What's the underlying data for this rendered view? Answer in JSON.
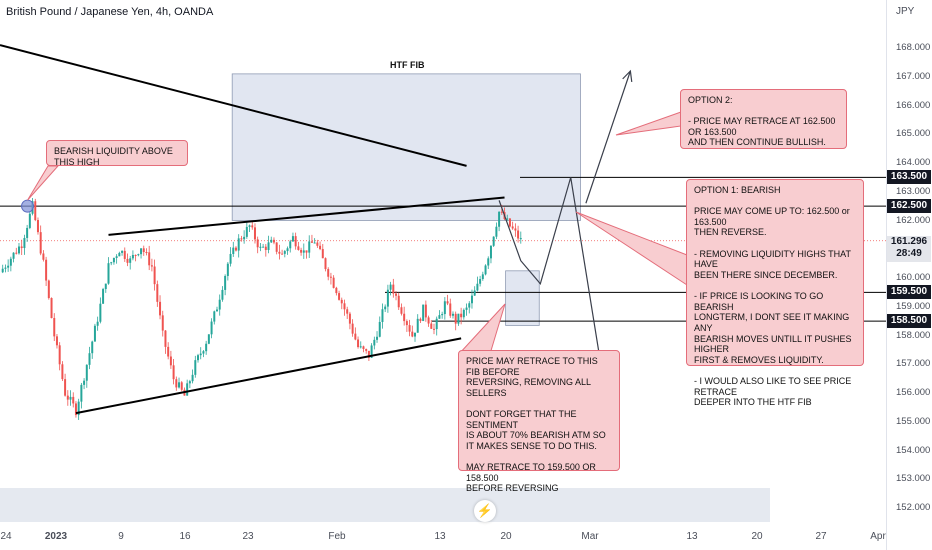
{
  "title": "British Pound / Japanese Yen, 4h, OANDA",
  "unit": "JPY",
  "htf_label": "HTF FIB",
  "last_price": "161.296",
  "countdown": "28:49",
  "tv_logo": "⚡",
  "notes": {
    "liquidity": "BEARISH LIQUIDITY ABOVE THIS HIGH",
    "option2": "OPTION 2:\n\n- PRICE MAY RETRACE AT 162.500 OR 163.500\n  AND THEN CONTINUE BULLISH.",
    "option1": "OPTION 1: BEARISH\n\nPRICE MAY COME UP TO: 162.500 or 163.500\nTHEN REVERSE.\n\n- REMOVING LIQUIDITY HIGHS THAT HAVE\n  BEEN THERE SINCE DECEMBER.\n\n- IF PRICE IS LOOKING TO GO BEARISH\n  LONGTERM, I DONT SEE IT MAKING ANY\n  BEARISH MOVES UNTILL IT PUSHES HIGHER\n  FIRST & REMOVES LIQUIDITY.\n\n- I WOULD ALSO LIKE TO SEE PRICE RETRACE\n  DEEPER INTO THE HTF FIB",
    "retrace": "PRICE MAY RETRACE TO THIS FIB BEFORE\nREVERSING, REMOVING ALL SELLERS\n\nDONT FORGET THAT THE SENTIMENT\nIS ABOUT 70% BEARISH ATM SO\nIT MAKES SENSE TO DO THIS.\n\nMAY RETRACE TO 159.500 OR 158.500\nBEFORE REVERSING"
  },
  "chart_data": {
    "type": "candlestick",
    "symbol": "British Pound / Japanese Yen",
    "timeframe": "4h",
    "source": "OANDA",
    "y_unit": "JPY",
    "ylim": [
      151.7,
      169.0
    ],
    "y_ticks": [
      "152.000",
      "153.000",
      "154.000",
      "155.000",
      "156.000",
      "157.000",
      "158.000",
      "159.000",
      "160.000",
      "161.000",
      "162.000",
      "163.000",
      "164.000",
      "165.000",
      "166.000",
      "167.000",
      "168.000"
    ],
    "x_ticks": [
      "24",
      "2023",
      "9",
      "16",
      "23",
      "Feb",
      "13",
      "20",
      "Mar",
      "13",
      "20",
      "27",
      "Apr"
    ],
    "levels": [
      {
        "label": "163.500",
        "price": 163.5
      },
      {
        "label": "162.500",
        "price": 162.5
      },
      {
        "label": "159.500",
        "price": 159.5
      },
      {
        "label": "158.500",
        "price": 158.5
      }
    ],
    "last_price": 161.296,
    "price_path": [
      [
        0,
        160.2
      ],
      [
        1,
        160.7
      ],
      [
        2,
        161.2
      ],
      [
        3,
        162.5
      ],
      [
        4,
        160.5
      ],
      [
        5,
        158.0
      ],
      [
        6,
        156.0
      ],
      [
        7,
        155.4
      ],
      [
        8,
        157.0
      ],
      [
        9,
        158.6
      ],
      [
        10,
        160.4
      ],
      [
        11,
        161.0
      ],
      [
        12,
        160.6
      ],
      [
        13,
        161.1
      ],
      [
        14,
        160.4
      ],
      [
        15,
        158.0
      ],
      [
        16,
        156.5
      ],
      [
        17,
        155.9
      ],
      [
        18,
        157.0
      ],
      [
        19,
        157.8
      ],
      [
        20,
        159.0
      ],
      [
        21,
        160.5
      ],
      [
        22,
        161.3
      ],
      [
        23,
        161.8
      ],
      [
        24,
        161.0
      ],
      [
        25,
        161.2
      ],
      [
        26,
        160.8
      ],
      [
        27,
        161.4
      ],
      [
        28,
        160.9
      ],
      [
        29,
        161.3
      ],
      [
        30,
        160.4
      ],
      [
        31,
        159.6
      ],
      [
        32,
        158.7
      ],
      [
        33,
        157.6
      ],
      [
        34,
        157.3
      ],
      [
        35,
        158.4
      ],
      [
        36,
        159.8
      ],
      [
        37,
        158.9
      ],
      [
        38,
        158.0
      ],
      [
        39,
        158.9
      ],
      [
        40,
        158.2
      ],
      [
        41,
        159.1
      ],
      [
        42,
        158.5
      ],
      [
        43,
        158.9
      ],
      [
        44,
        159.7
      ],
      [
        45,
        160.8
      ],
      [
        46,
        162.3
      ],
      [
        47,
        161.8
      ],
      [
        48,
        161.3
      ]
    ],
    "series": [
      {
        "name": "Upper trend line",
        "x": [
          0,
          43
        ],
        "y": [
          168.1,
          163.9
        ]
      },
      {
        "name": "Channel top",
        "x": [
          10,
          46.5
        ],
        "y": [
          161.5,
          162.8
        ]
      },
      {
        "name": "Channel bottom",
        "x": [
          7,
          42.5
        ],
        "y": [
          155.3,
          157.9
        ]
      },
      {
        "name": "Option 1 path",
        "x": [
          46,
          48,
          49.8,
          52.6,
          56.1
        ],
        "y": [
          162.7,
          160.6,
          159.8,
          163.5,
          155.3
        ]
      },
      {
        "name": "Option 2 path",
        "x": [
          54,
          58.1
        ],
        "y": [
          162.6,
          167.2
        ]
      }
    ],
    "zones": [
      {
        "name": "HTF FIB",
        "x0": 21.4,
        "x1": 53.5,
        "y0": 162.0,
        "y1": 167.1
      },
      {
        "name": "Retrace zone",
        "x0": 46.6,
        "x1": 49.7,
        "y0": 158.35,
        "y1": 160.25
      }
    ],
    "annotations": [
      {
        "text": "BEARISH LIQUIDITY ABOVE THIS HIGH",
        "target": [
          3,
          162.5
        ]
      }
    ],
    "grid": false,
    "legend": "none"
  }
}
